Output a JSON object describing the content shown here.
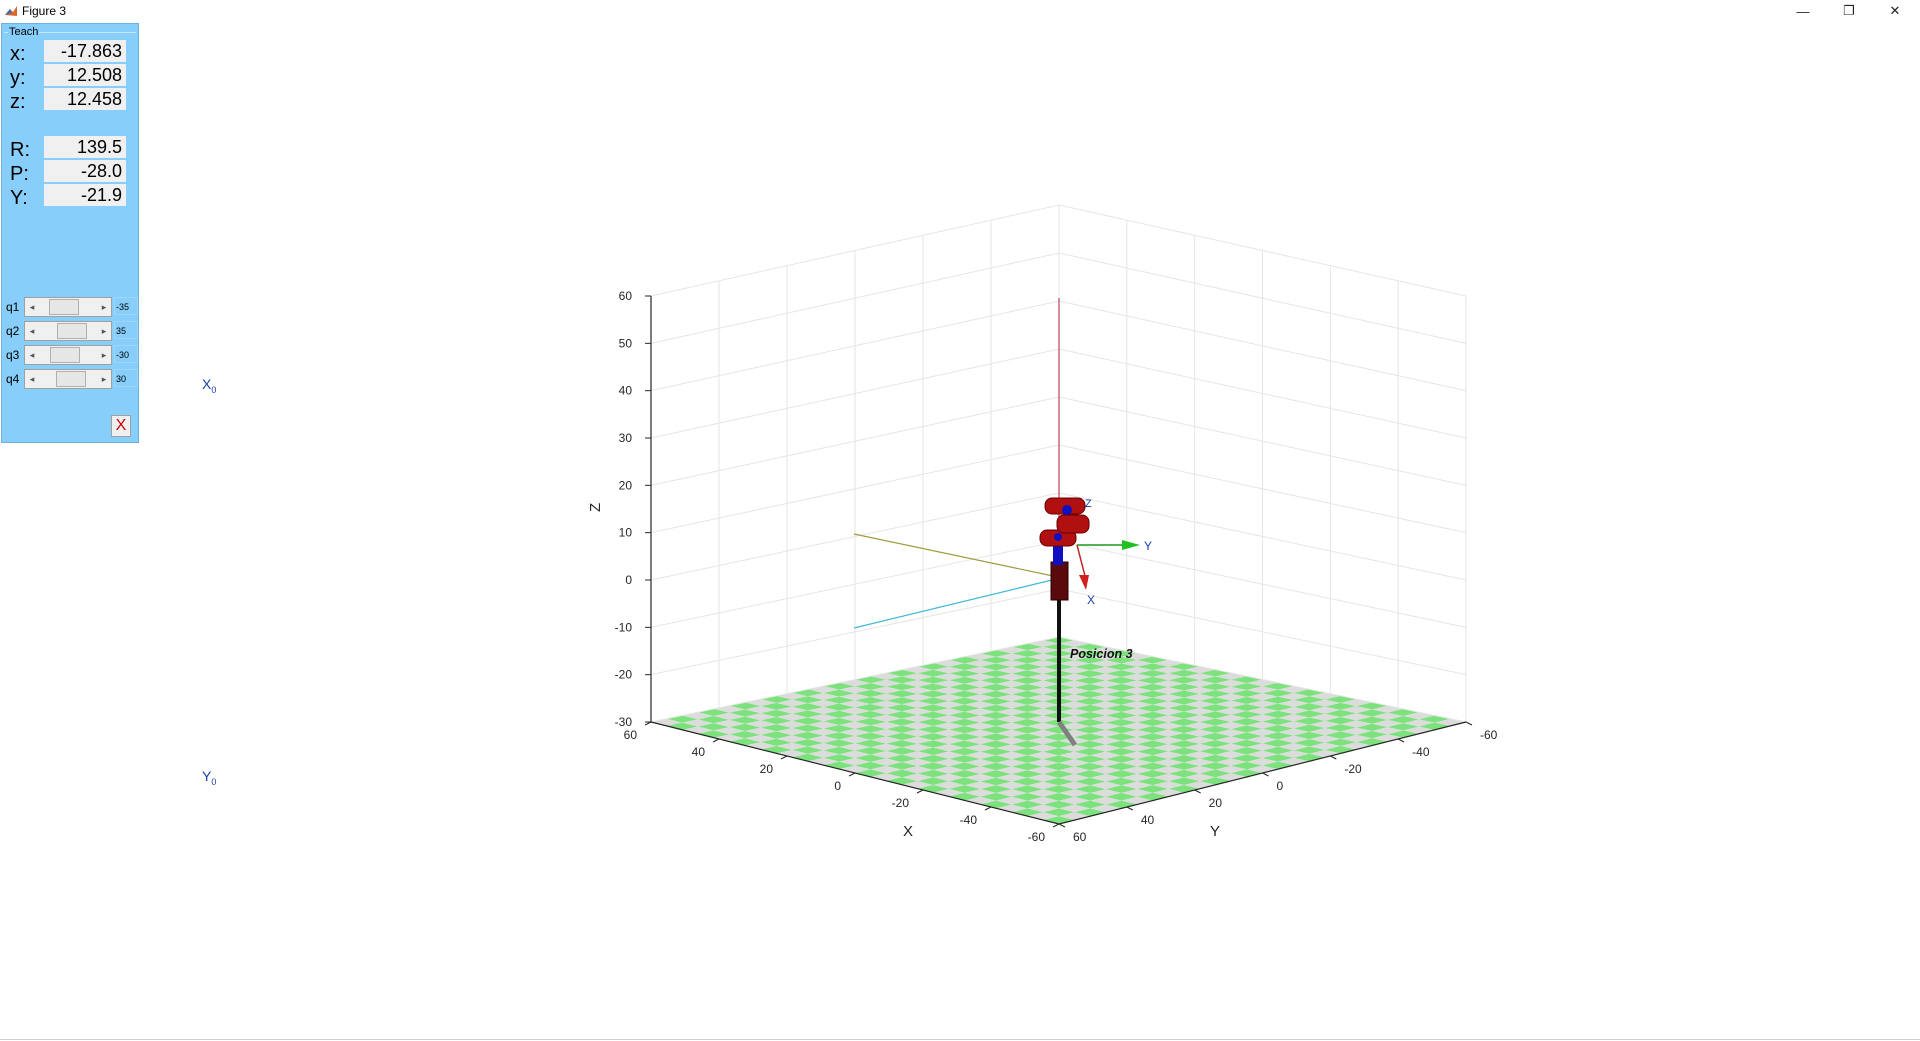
{
  "window": {
    "title": "Figure 3",
    "controls": [
      "—",
      "❐",
      "✕"
    ]
  },
  "teach": {
    "title": "Teach",
    "pose": [
      {
        "label": "x:",
        "value": "-17.863"
      },
      {
        "label": "y:",
        "value": "12.508"
      },
      {
        "label": "z:",
        "value": "12.458"
      },
      {
        "label": "R:",
        "value": "139.5"
      },
      {
        "label": "P:",
        "value": "-28.0"
      },
      {
        "label": "Y:",
        "value": "-21.9"
      }
    ],
    "joints": [
      {
        "label": "q1",
        "value": "-35",
        "fraction": 0.35
      },
      {
        "label": "q2",
        "value": "35",
        "fraction": 0.65
      },
      {
        "label": "q3",
        "value": "-30",
        "fraction": 0.38
      },
      {
        "label": "q4",
        "value": "30",
        "fraction": 0.62
      }
    ],
    "close_label": "X"
  },
  "frames": {
    "x0": "X",
    "y0": "Y",
    "subscript": "0"
  },
  "plot": {
    "zlabel": "Z",
    "xlabel": "X",
    "ylabel": "Y",
    "z_ticks": [
      "60",
      "50",
      "40",
      "30",
      "20",
      "10",
      "0",
      "-10",
      "-20",
      "-30"
    ],
    "x_ticks": [
      "60",
      "40",
      "20",
      "0",
      "-20",
      "-40",
      "-60"
    ],
    "y_ticks": [
      "-60",
      "-40",
      "-20",
      "0",
      "20",
      "40",
      "60"
    ],
    "annotation": "Posicion 3",
    "tool_axes": {
      "x": "X",
      "y": "Y",
      "z": "Z"
    },
    "colors": {
      "floor_light": "#dcdcdc",
      "floor_green": "#7de27d",
      "link_red": "#b01010",
      "joint_blue": "#1010c0",
      "arm_dark": "#5a0a0a"
    }
  }
}
